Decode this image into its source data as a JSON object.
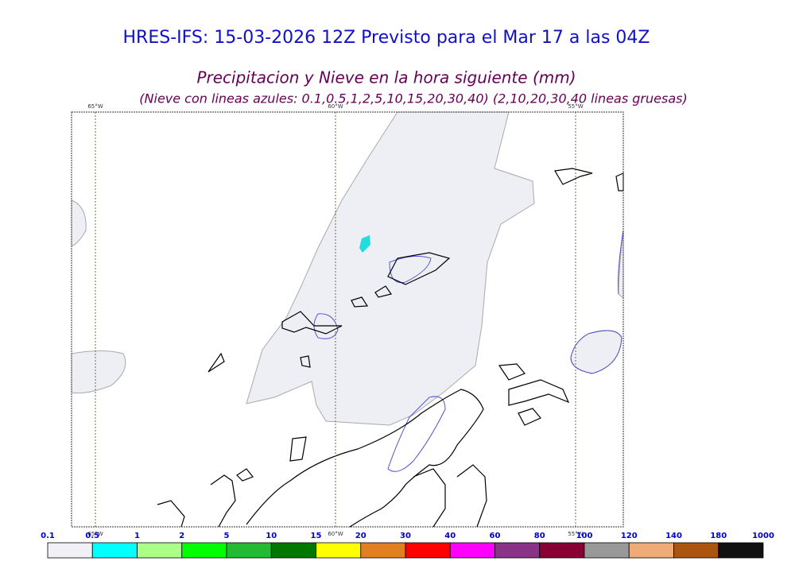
{
  "header": {
    "title": "HRES-IFS: 15-03-2026 12Z Previsto para el Mar 17 a las 04Z",
    "subtitle": "Precipitacion y Nieve en la hora siguiente (mm)",
    "note": "(Nieve con lineas azules: 0.1,0.5,1,2,5,10,15,20,30,40)  (2,10,20,30,40 lineas gruesas)"
  },
  "map": {
    "meridian_labels": [
      "65°W",
      "60°W",
      "55°W"
    ]
  },
  "colorbar": {
    "levels": [
      0.1,
      0.5,
      1,
      2,
      5,
      10,
      15,
      20,
      30,
      40,
      60,
      80,
      100,
      120,
      140,
      180,
      1000
    ],
    "colors": [
      "#f0f0f6",
      "#00ffff",
      "#aaff88",
      "#00ff00",
      "#22bb33",
      "#007700",
      "#ffff00",
      "#e08020",
      "#ff0000",
      "#ff00ff",
      "#883388",
      "#880033",
      "#999999",
      "#eeaa77",
      "#aa5511",
      "#111111"
    ]
  }
}
